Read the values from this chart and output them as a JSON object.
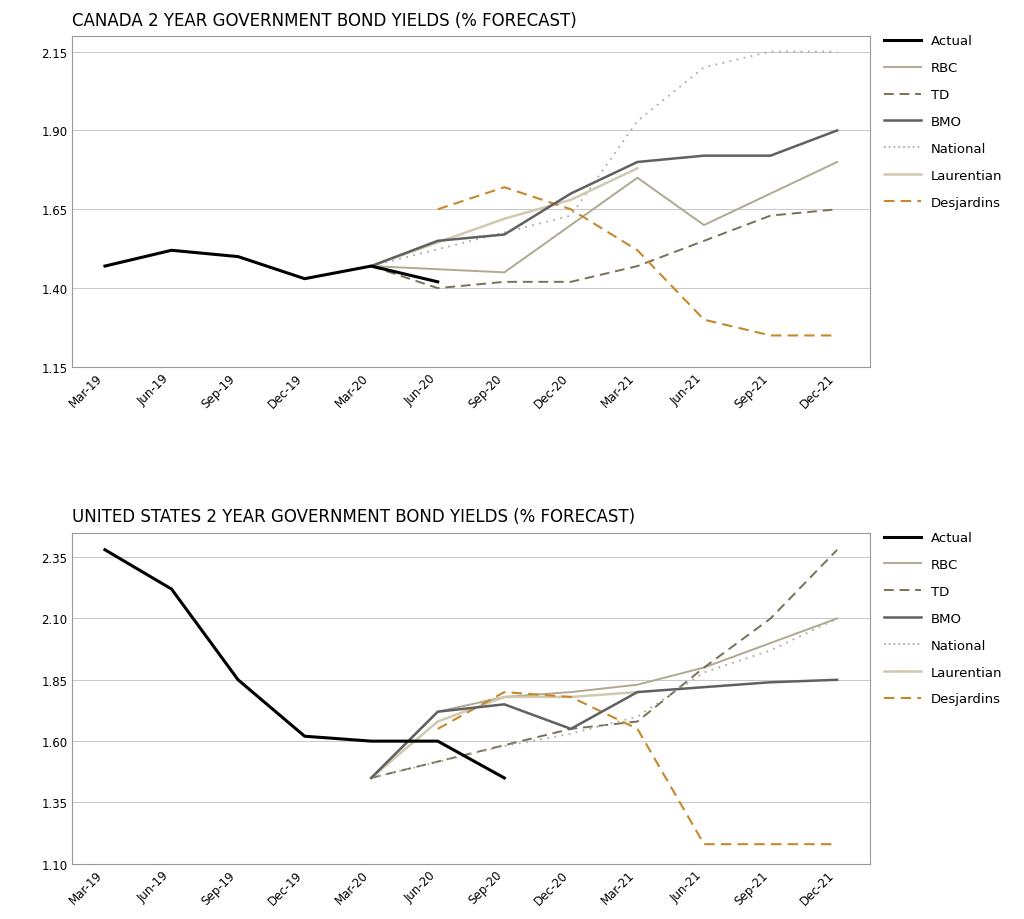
{
  "x_labels": [
    "Mar-19",
    "Jun-19",
    "Sep-19",
    "Dec-19",
    "Mar-20",
    "Jun-20",
    "Sep-20",
    "Dec-20",
    "Mar-21",
    "Jun-21",
    "Sep-21",
    "Dec-21"
  ],
  "canada": {
    "title": "CANADA 2 YEAR GOVERNMENT BOND YIELDS (% FORECAST)",
    "ylim": [
      1.15,
      2.2
    ],
    "yticks": [
      1.15,
      1.4,
      1.65,
      1.9,
      2.15
    ],
    "actual": [
      1.47,
      1.52,
      1.5,
      1.43,
      1.47,
      1.42,
      null,
      null,
      null,
      null,
      null,
      null
    ],
    "rbc": [
      null,
      null,
      null,
      null,
      1.47,
      null,
      1.45,
      1.6,
      1.75,
      1.6,
      1.7,
      1.8
    ],
    "td": [
      null,
      null,
      null,
      null,
      1.47,
      1.4,
      1.42,
      1.42,
      1.47,
      1.55,
      1.63,
      1.65
    ],
    "bmo": [
      null,
      null,
      null,
      null,
      1.47,
      1.55,
      1.57,
      1.7,
      1.8,
      1.82,
      1.82,
      1.9
    ],
    "national": [
      null,
      null,
      null,
      null,
      1.47,
      null,
      null,
      1.63,
      1.93,
      2.1,
      2.15,
      2.15
    ],
    "laurentian": [
      null,
      null,
      null,
      null,
      1.47,
      null,
      1.62,
      1.68,
      1.78,
      null,
      null,
      null
    ],
    "desjardins": [
      null,
      null,
      null,
      null,
      null,
      1.65,
      1.72,
      1.65,
      1.52,
      1.3,
      1.25,
      1.25
    ]
  },
  "us": {
    "title": "UNITED STATES 2 YEAR GOVERNMENT BOND YIELDS (% FORECAST)",
    "ylim": [
      1.1,
      2.45
    ],
    "yticks": [
      1.1,
      1.35,
      1.6,
      1.85,
      2.1,
      2.35
    ],
    "actual": [
      2.38,
      2.22,
      1.85,
      1.62,
      1.6,
      1.6,
      1.45,
      null,
      null,
      null,
      null,
      null
    ],
    "rbc": [
      null,
      null,
      null,
      null,
      1.45,
      1.72,
      1.78,
      1.8,
      1.83,
      1.9,
      2.0,
      2.1
    ],
    "td": [
      null,
      null,
      null,
      null,
      1.45,
      null,
      null,
      1.65,
      1.68,
      1.9,
      2.1,
      2.38
    ],
    "bmo": [
      null,
      null,
      null,
      null,
      1.45,
      1.72,
      1.75,
      1.65,
      1.8,
      1.82,
      1.84,
      1.85
    ],
    "national": [
      null,
      null,
      null,
      null,
      1.45,
      null,
      1.58,
      1.63,
      1.7,
      1.88,
      1.97,
      2.1
    ],
    "laurentian": [
      null,
      null,
      null,
      null,
      1.45,
      1.68,
      1.78,
      1.78,
      1.8,
      null,
      null,
      null
    ],
    "desjardins": [
      null,
      null,
      null,
      null,
      null,
      1.65,
      1.8,
      1.78,
      1.65,
      1.18,
      1.18,
      1.18
    ]
  },
  "colors": {
    "actual": "#000000",
    "rbc": "#b0a890",
    "td": "#7a7055",
    "bmo": "#606060",
    "national": "#aaaaaa",
    "laurentian": "#d0c9b0",
    "desjardins": "#c8882a"
  },
  "background": "#ffffff",
  "title_fontsize": 12,
  "tick_fontsize": 8.5,
  "legend_fontsize": 9.5
}
